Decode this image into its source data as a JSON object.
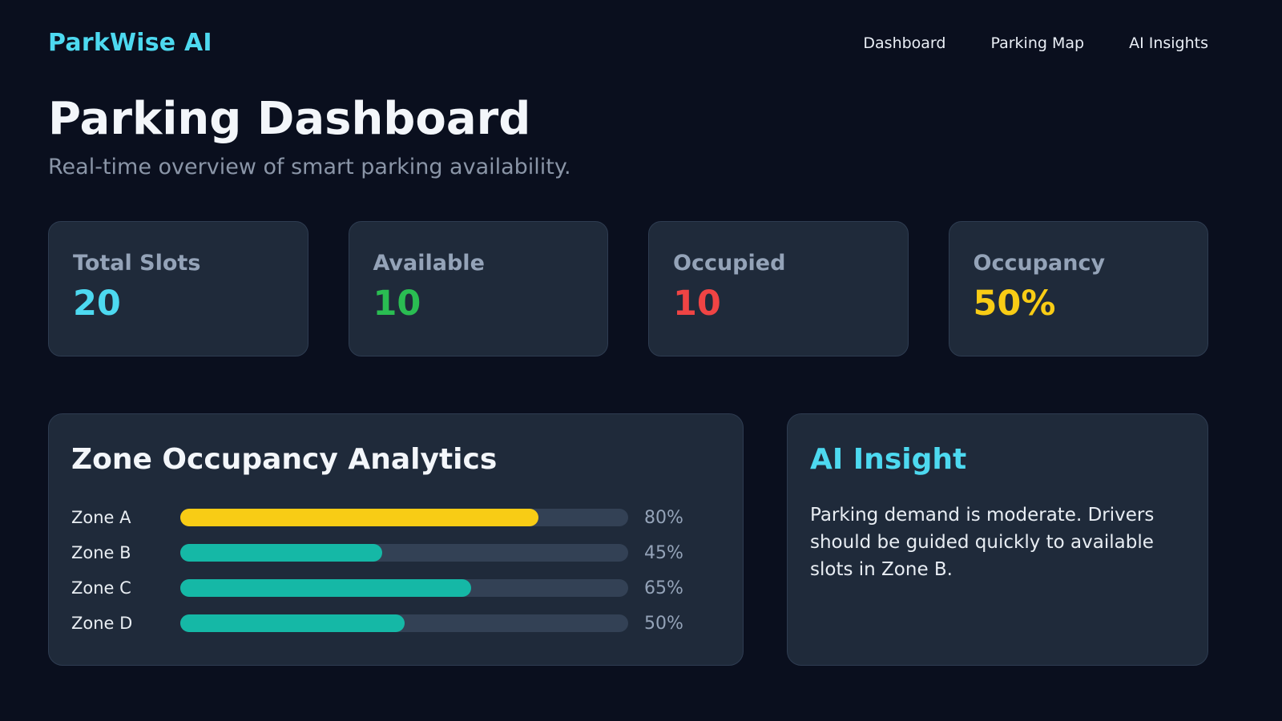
{
  "header": {
    "brand": "ParkWise AI",
    "brand_color": "#4dd9f0",
    "nav": [
      {
        "label": "Dashboard"
      },
      {
        "label": "Parking Map"
      },
      {
        "label": "AI Insights"
      }
    ]
  },
  "hero": {
    "title": "Parking Dashboard",
    "subtitle": "Real-time overview of smart parking availability."
  },
  "stats": {
    "cards": [
      {
        "label": "Total Slots",
        "value": "20",
        "color": "#4dd9f0"
      },
      {
        "label": "Available",
        "value": "10",
        "color": "#2abd52"
      },
      {
        "label": "Occupied",
        "value": "10",
        "color": "#ef4444"
      },
      {
        "label": "Occupancy",
        "value": "50%",
        "color": "#f8cc15"
      }
    ]
  },
  "analytics": {
    "title": "Zone Occupancy Analytics",
    "track_color": "#334155",
    "zones": [
      {
        "label": "Zone A",
        "percent": "80%",
        "color": "#f8cc15"
      },
      {
        "label": "Zone B",
        "percent": "45%",
        "color": "#15b8a6"
      },
      {
        "label": "Zone C",
        "percent": "65%",
        "color": "#15b8a6"
      },
      {
        "label": "Zone D",
        "percent": "50%",
        "color": "#15b8a6"
      }
    ]
  },
  "insight": {
    "title": "AI Insight",
    "title_color": "#4dd9f0",
    "body": "Parking demand is moderate. Drivers should be guided quickly to available slots in Zone B."
  },
  "chart_data": {
    "type": "bar",
    "orientation": "horizontal",
    "title": "Zone Occupancy Analytics",
    "categories": [
      "Zone A",
      "Zone B",
      "Zone C",
      "Zone D"
    ],
    "values": [
      80,
      45,
      65,
      50
    ],
    "unit": "%",
    "xlim": [
      0,
      100
    ],
    "xlabel": "",
    "ylabel": "",
    "grid": false,
    "legend": false,
    "bar_colors": [
      "#f8cc15",
      "#15b8a6",
      "#15b8a6",
      "#15b8a6"
    ]
  }
}
